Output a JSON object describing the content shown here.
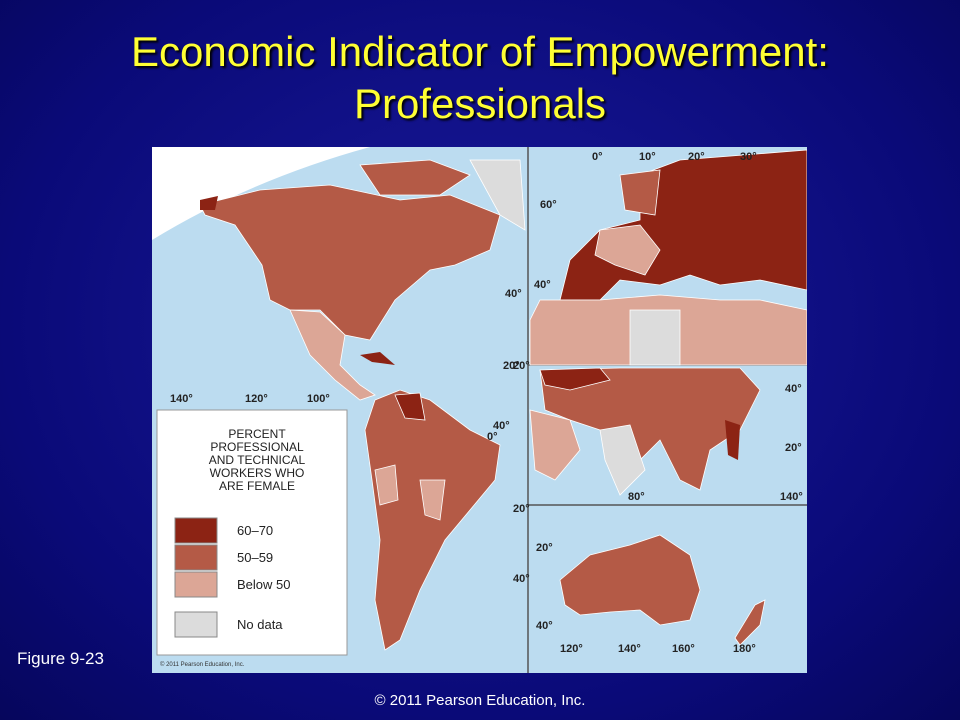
{
  "slide": {
    "title": [
      "Economic Indicator of Empowerment:",
      "Professionals"
    ],
    "figure_label": "Figure 9-23",
    "copyright": "© 2011 Pearson Education, Inc."
  },
  "map": {
    "credit": "© 2011 Pearson Education, Inc.",
    "legend": {
      "title": [
        "PERCENT",
        "PROFESSIONAL",
        "AND TECHNICAL",
        "WORKERS WHO",
        "ARE FEMALE"
      ],
      "items": [
        {
          "label": "60–70",
          "color": "#8c2314"
        },
        {
          "label": "50–59",
          "color": "#b45a46"
        },
        {
          "label": "Below 50",
          "color": "#dca696"
        },
        {
          "label": "No data",
          "color": "#dcdcdc"
        }
      ]
    },
    "americas_labels": [
      "140°",
      "120°",
      "100°",
      "40°",
      "20°",
      "40°",
      "0°",
      "20°",
      "40°"
    ],
    "europe_labels": [
      "0°",
      "10°",
      "20°",
      "30°",
      "60°",
      "40°",
      "20°"
    ],
    "asia_labels": [
      "40°",
      "20°",
      "80°",
      "140°"
    ],
    "oceania_labels": [
      "20°",
      "40°",
      "120°",
      "140°",
      "160°",
      "180°"
    ]
  }
}
